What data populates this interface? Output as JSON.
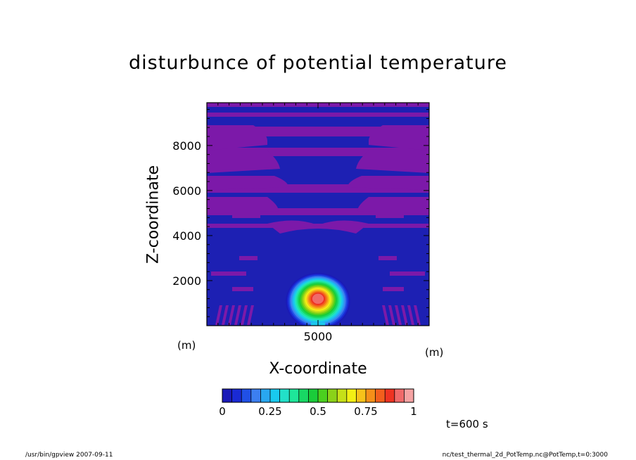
{
  "chart_data": {
    "type": "heatmap",
    "title": "disturbunce of potential temperature",
    "xlabel": "X-coordinate",
    "ylabel": "Z-coordinate",
    "x_unit": "(m)",
    "y_unit": "(m)",
    "x_ticks": [
      5000
    ],
    "y_ticks": [
      2000,
      4000,
      6000,
      8000
    ],
    "xlim": [
      0,
      10000
    ],
    "ylim": [
      0,
      9900
    ],
    "max_value": 1.0,
    "max_location": {
      "x": 5000,
      "z": 1200
    },
    "colorbar": {
      "min": 0,
      "max": 1,
      "step": 0.05,
      "ticks": [
        "0",
        "0.25",
        "0.5",
        "0.75",
        "1"
      ],
      "colors": [
        "#1b1296",
        "#1a1ab8",
        "#1a2ad4",
        "#2050e6",
        "#3c7ff0",
        "#29a7f0",
        "#19c9ee",
        "#22e0c8",
        "#1ee69a",
        "#18d864",
        "#1acc3a",
        "#4bd01f",
        "#8bd219",
        "#c6e018",
        "#f2ef14",
        "#f7c21a",
        "#f58f19",
        "#f25f1d",
        "#ee3322",
        "#f06a6a",
        "#f5a3a3"
      ]
    },
    "background_colors": {
      "negative_band": "#1d20b3",
      "near_zero_band": "#7c19a9"
    },
    "annotation": "t=600 s"
  },
  "footer": {
    "left": "/usr/bin/gpview   2007-09-11",
    "right": "nc/test_thermal_2d_PotTemp.nc@PotTemp,t=0:3000"
  }
}
